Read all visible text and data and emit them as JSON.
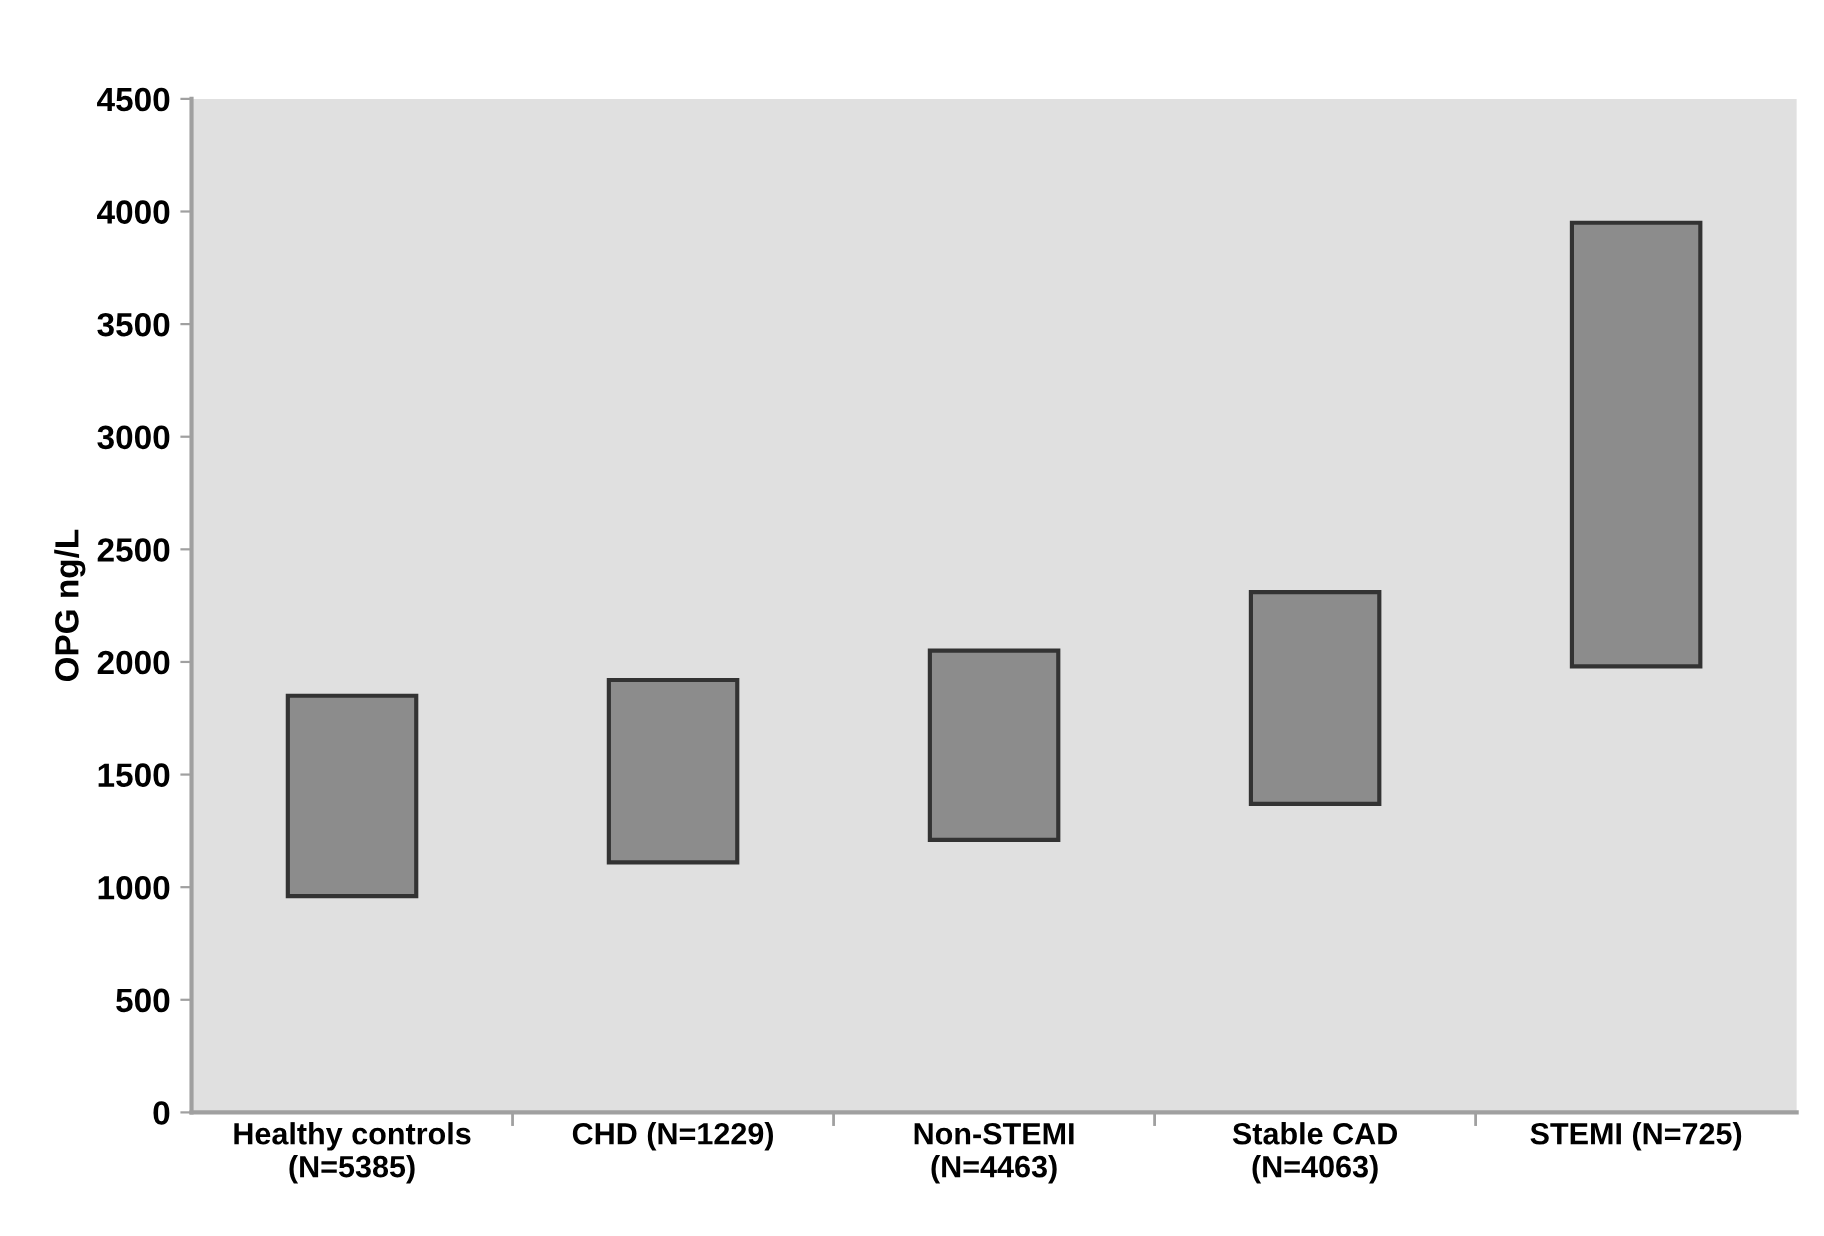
{
  "chart_data": {
    "type": "bar",
    "ylabel": "OPG ng/L",
    "categories": [
      "Healthy controls\n(N=5385)",
      "CHD (N=1229)",
      "Non-STEMI\n(N=4463)",
      "Stable CAD\n(N=4063)",
      "STEMI (N=725)"
    ],
    "base": [
      960,
      1110,
      1210,
      1370,
      1980
    ],
    "values": [
      890,
      810,
      840,
      940,
      1970
    ],
    "color": "#8c8c8c",
    "ylim": [
      0,
      4500
    ],
    "yticks": [
      0,
      500,
      1000,
      1500,
      2000,
      2500,
      3000,
      3500,
      4000,
      4500
    ],
    "grid": false
  }
}
